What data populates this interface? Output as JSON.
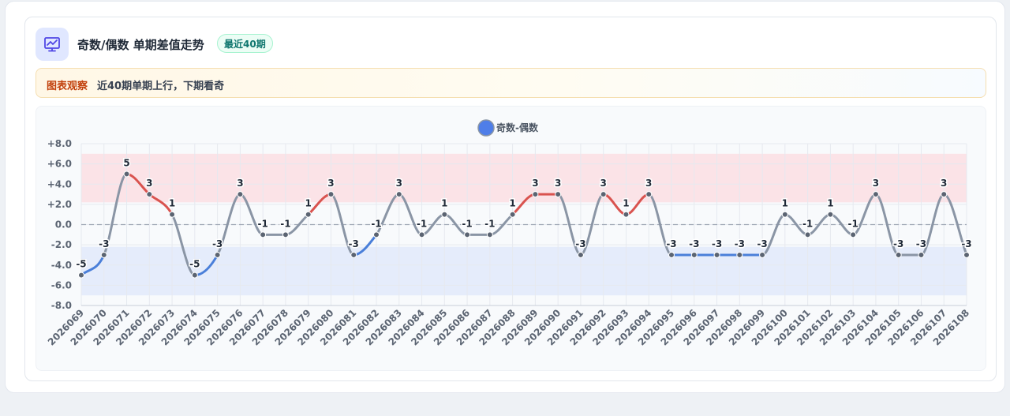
{
  "card": {
    "title": "奇数/偶数 单期差值走势",
    "badge": "最近40期"
  },
  "notice": {
    "label": "图表观察",
    "text": "近40期单期上行，下期看奇"
  },
  "chart_data": {
    "type": "line",
    "series": [
      {
        "name": "奇数-偶数",
        "values": [
          -5,
          -3,
          5,
          3,
          1,
          -5,
          -3,
          3,
          -1,
          -1,
          1,
          3,
          -3,
          -1,
          3,
          -1,
          1,
          -1,
          -1,
          1,
          3,
          3,
          -3,
          3,
          1,
          3,
          -3,
          -3,
          -3,
          -3,
          -3,
          1,
          -1,
          1,
          -1,
          3,
          -3,
          -3,
          3,
          -3
        ]
      }
    ],
    "categories": [
      "2026069",
      "2026070",
      "2026071",
      "2026072",
      "2026073",
      "2026074",
      "2026075",
      "2026076",
      "2026077",
      "2026078",
      "2026079",
      "2026080",
      "2026081",
      "2026082",
      "2026083",
      "2026084",
      "2026085",
      "2026086",
      "2026087",
      "2026088",
      "2026089",
      "2026090",
      "2026091",
      "2026092",
      "2026093",
      "2026094",
      "2026095",
      "2026096",
      "2026097",
      "2026098",
      "2026099",
      "2026100",
      "2026101",
      "2026102",
      "2026103",
      "2026104",
      "2026105",
      "2026106",
      "2026107",
      "2026108"
    ],
    "ylim": [
      -8,
      8
    ],
    "y_ticks": [
      "+8.0",
      "+6.0",
      "+4.0",
      "+2.0",
      "0.0",
      "-2.0",
      "-4.0",
      "-6.0",
      "-8.0"
    ],
    "y_tick_values": [
      8,
      6,
      4,
      2,
      0,
      -2,
      -4,
      -6,
      -8
    ],
    "bands": [
      {
        "from": 2.2,
        "to": 7,
        "color": "#fbe3e7"
      },
      {
        "from": -7,
        "to": -2.2,
        "color": "#e5ecfb"
      }
    ],
    "grid": true,
    "legend_position": "top-center",
    "colors": {
      "line": "#8a95a5",
      "rising": "#d9534f",
      "falling": "#4a7fd9",
      "point": "#5b6472",
      "legend_dot": "#4f7ee8",
      "zero_line": "#a0a8b5"
    }
  }
}
